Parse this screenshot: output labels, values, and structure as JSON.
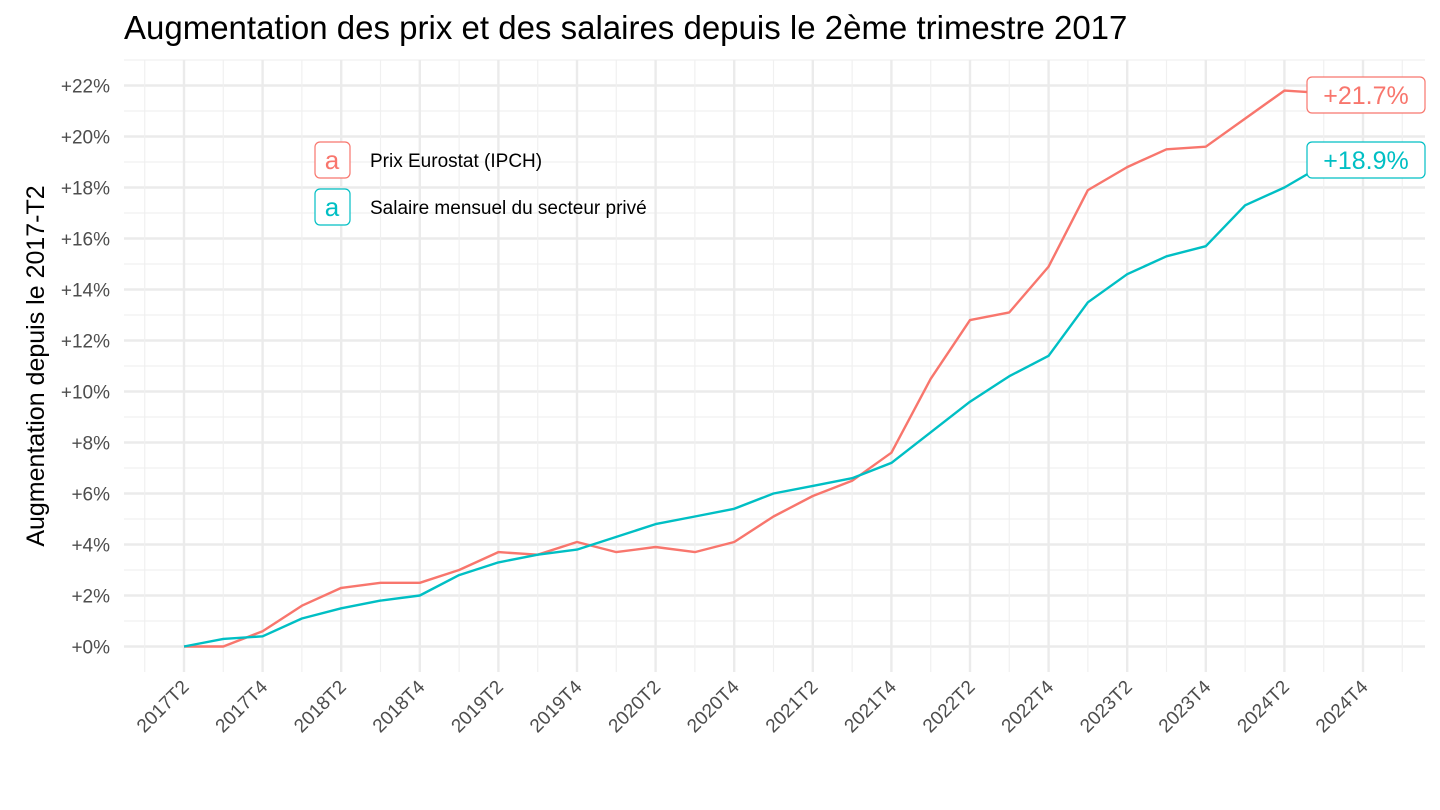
{
  "chart_data": {
    "type": "line",
    "title": "Augmentation des prix et des salaires depuis le 2ème trimestre 2017",
    "xlabel": "",
    "ylabel": "Augmentation depuis le 2017-T2",
    "x": [
      "2017T2",
      "2017T3",
      "2017T4",
      "2018T1",
      "2018T2",
      "2018T3",
      "2018T4",
      "2019T1",
      "2019T2",
      "2019T3",
      "2019T4",
      "2020T1",
      "2020T2",
      "2020T3",
      "2020T4",
      "2021T1",
      "2021T2",
      "2021T3",
      "2021T4",
      "2022T1",
      "2022T2",
      "2022T3",
      "2022T4",
      "2023T1",
      "2023T2",
      "2023T3",
      "2023T4",
      "2024T1",
      "2024T2",
      "2024T3"
    ],
    "x_tick_labels": [
      "2017T2",
      "2017T4",
      "2018T2",
      "2018T4",
      "2019T2",
      "2019T4",
      "2020T2",
      "2020T4",
      "2021T2",
      "2021T4",
      "2022T2",
      "2022T4",
      "2023T2",
      "2023T4",
      "2024T2",
      "2024T4"
    ],
    "x_range": [
      "2017T2",
      "2024T4"
    ],
    "y_ticks": [
      0,
      2,
      4,
      6,
      8,
      10,
      12,
      14,
      16,
      18,
      20,
      22
    ],
    "y_tick_labels": [
      "+0%",
      "+2%",
      "+4%",
      "+6%",
      "+8%",
      "+10%",
      "+12%",
      "+14%",
      "+16%",
      "+18%",
      "+20%",
      "+22%"
    ],
    "ylim": [
      -1.0,
      23.0
    ],
    "grid": true,
    "legend_position": "top-left (inside)",
    "legend_key_glyph": "a",
    "series": [
      {
        "name": "Prix Eurostat (IPCH)",
        "color": "#F8766D",
        "values": [
          0.0,
          0.0,
          0.6,
          1.6,
          2.3,
          2.5,
          2.5,
          3.0,
          3.7,
          3.6,
          4.1,
          3.7,
          3.9,
          3.7,
          4.1,
          5.1,
          5.9,
          6.5,
          7.6,
          10.5,
          12.8,
          13.1,
          14.9,
          17.9,
          18.8,
          19.5,
          19.6,
          20.7,
          21.8,
          21.7
        ],
        "end_label": "+21.7%"
      },
      {
        "name": "Salaire mensuel du secteur privé",
        "color": "#00BFC4",
        "values": [
          0.0,
          0.3,
          0.4,
          1.1,
          1.5,
          1.8,
          2.0,
          2.8,
          3.3,
          3.6,
          3.8,
          4.3,
          4.8,
          5.1,
          5.4,
          6.0,
          6.3,
          6.6,
          7.2,
          8.4,
          9.6,
          10.6,
          11.4,
          13.5,
          14.6,
          15.3,
          15.7,
          17.3,
          18.0,
          18.9
        ],
        "end_label": "+18.9%"
      }
    ]
  }
}
